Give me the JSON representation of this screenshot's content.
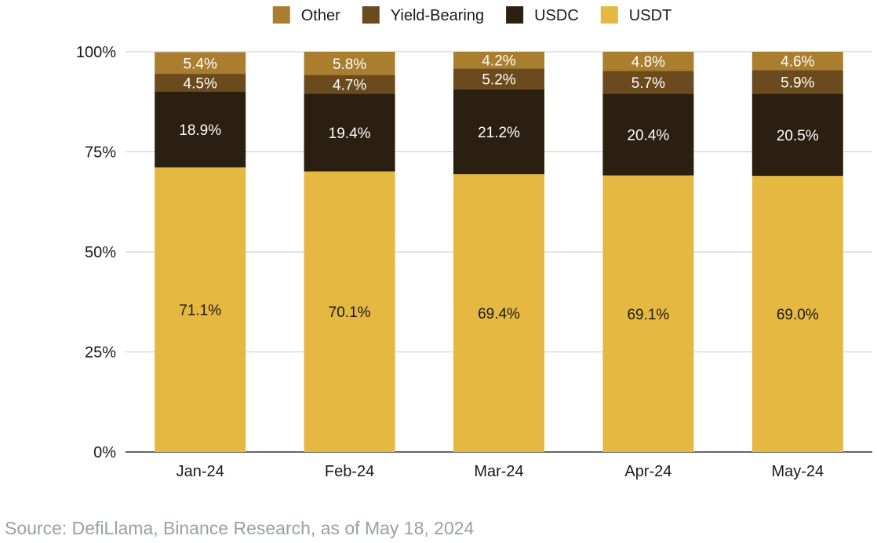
{
  "chart_data": {
    "type": "bar",
    "stacked": true,
    "categories": [
      "Jan-24",
      "Feb-24",
      "Mar-24",
      "Apr-24",
      "May-24"
    ],
    "series": [
      {
        "name": "USDT",
        "values": [
          71.1,
          70.1,
          69.4,
          69.1,
          69.0
        ],
        "labels": [
          "71.1%",
          "70.1%",
          "69.4%",
          "69.1%",
          "69.0%"
        ],
        "color": "#e5b842",
        "label_color": "#1a1a1a"
      },
      {
        "name": "USDC",
        "values": [
          18.9,
          19.4,
          21.2,
          20.4,
          20.5
        ],
        "labels": [
          "18.9%",
          "19.4%",
          "21.2%",
          "20.4%",
          "20.5%"
        ],
        "color": "#2a1f10",
        "label_color": "#ffffff"
      },
      {
        "name": "Yield-Bearing",
        "values": [
          4.5,
          4.7,
          5.2,
          5.7,
          5.9
        ],
        "labels": [
          "4.5%",
          "4.7%",
          "5.2%",
          "5.7%",
          "5.9%"
        ],
        "color": "#6b4a1e",
        "label_color": "#ffffff"
      },
      {
        "name": "Other",
        "values": [
          5.4,
          5.8,
          4.2,
          4.8,
          4.6
        ],
        "labels": [
          "5.4%",
          "5.8%",
          "4.2%",
          "4.8%",
          "4.6%"
        ],
        "color": "#a97e2e",
        "label_color": "#ffffff"
      }
    ],
    "legend_order": [
      "Other",
      "Yield-Bearing",
      "USDC",
      "USDT"
    ],
    "legend_position": "top-center",
    "y_ticks": [
      "0%",
      "25%",
      "50%",
      "75%",
      "100%"
    ],
    "ylim": [
      0,
      100
    ],
    "grid": true,
    "title": "",
    "xlabel": "",
    "ylabel": ""
  },
  "source_note": "Source: DefiLlama, Binance Research, as of May 18, 2024"
}
